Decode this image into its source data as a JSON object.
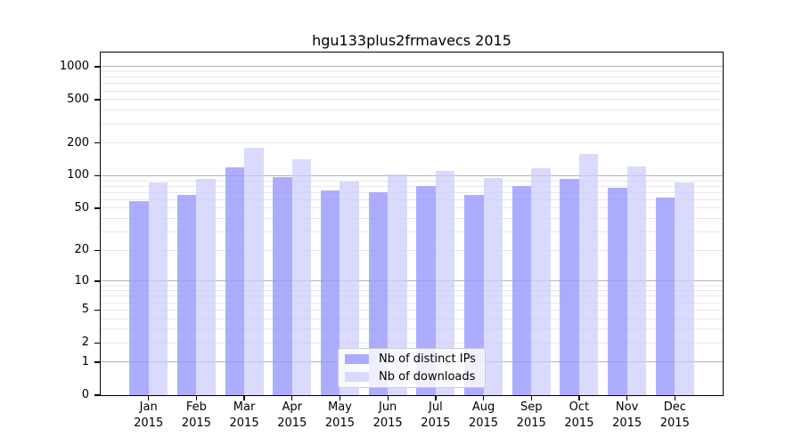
{
  "chart_data": {
    "type": "bar",
    "title": "hgu133plus2frmavecs 2015",
    "categories": [
      "Jan 2015",
      "Feb 2015",
      "Mar 2015",
      "Apr 2015",
      "May 2015",
      "Jun 2015",
      "Jul 2015",
      "Aug 2015",
      "Sep 2015",
      "Oct 2015",
      "Nov 2015",
      "Dec 2015"
    ],
    "series": [
      {
        "name": "Nb of distinct IPs",
        "color": "#9999ff",
        "alpha": 0.8,
        "values": [
          58,
          66,
          120,
          97,
          73,
          71,
          80,
          67,
          80,
          94,
          78,
          63
        ]
      },
      {
        "name": "Nb of downloads",
        "color": "#ccccff",
        "alpha": 0.72,
        "values": [
          87,
          94,
          180,
          141,
          89,
          102,
          110,
          96,
          118,
          160,
          121,
          86
        ]
      }
    ],
    "yscale": "log10(1+x)",
    "yticks": [
      0,
      1,
      2,
      5,
      10,
      20,
      50,
      100,
      200,
      500,
      1000
    ],
    "ylim": [
      0,
      1300
    ],
    "xlabel": "",
    "ylabel": "",
    "grid": true,
    "legend_position": "lower center inside",
    "colors": {
      "major_gridline": "#b3b3b3",
      "minor_gridline": "#e8e8e8",
      "axis": "#000000",
      "background": "#ffffff"
    }
  }
}
